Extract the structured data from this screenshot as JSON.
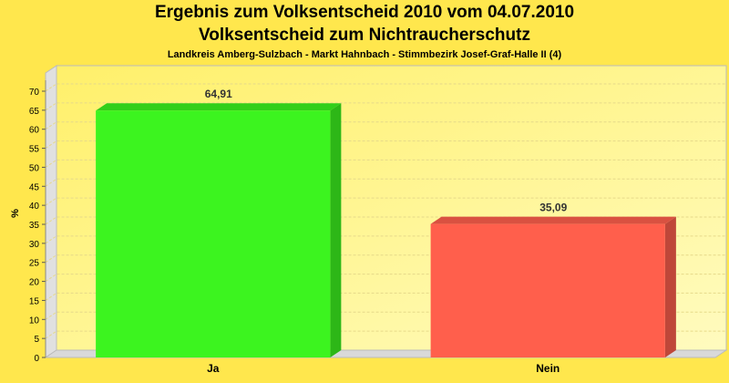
{
  "chart_data": {
    "type": "bar",
    "title": "Ergebnis zum Volksentscheid 2010 vom 04.07.2010",
    "title2": "Volksentscheid zum Nichtraucherschutz",
    "subtitle": "Landkreis Amberg-Sulzbach - Markt Hahnbach - Stimmbezirk Josef-Graf-Halle II (4)",
    "ylabel": "%",
    "xlabel": "",
    "ylim": [
      0,
      70
    ],
    "yticks": [
      0,
      5,
      10,
      15,
      20,
      25,
      30,
      35,
      40,
      45,
      50,
      55,
      60,
      65,
      70
    ],
    "categories": [
      "Ja",
      "Nein"
    ],
    "values": [
      64.91,
      35.09
    ],
    "value_labels": [
      "64,91",
      "35,09"
    ],
    "colors": [
      "#3cf41f",
      "#ff5f4c"
    ],
    "grid": true,
    "legend": "none"
  }
}
